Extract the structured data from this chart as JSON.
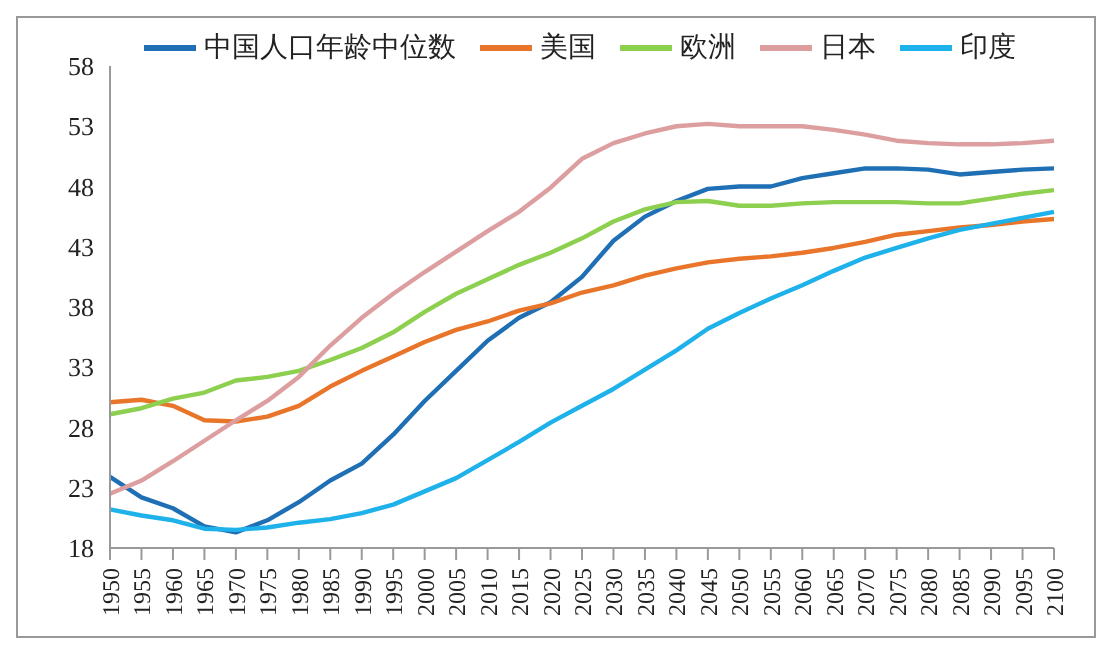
{
  "chart_data": {
    "type": "line",
    "categories": [
      "1950",
      "1955",
      "1960",
      "1965",
      "1970",
      "1975",
      "1980",
      "1985",
      "1990",
      "1995",
      "2000",
      "2005",
      "2010",
      "2015",
      "2020",
      "2025",
      "2030",
      "2035",
      "2040",
      "2045",
      "2050",
      "2055",
      "2060",
      "2065",
      "2070",
      "2075",
      "2080",
      "2085",
      "2090",
      "2095",
      "2100"
    ],
    "series": [
      {
        "name": "中国人口年龄中位数",
        "color": "#1f6fb5",
        "values": [
          23.9,
          22.2,
          21.3,
          19.8,
          19.3,
          20.3,
          21.8,
          23.6,
          25.0,
          27.4,
          30.2,
          32.7,
          35.2,
          37.1,
          38.4,
          40.5,
          43.5,
          45.5,
          46.8,
          47.8,
          48.0,
          48.0,
          48.7,
          49.1,
          49.5,
          49.5,
          49.4,
          49.0,
          49.2,
          49.4,
          49.5
        ]
      },
      {
        "name": "美国",
        "color": "#e8752a",
        "values": [
          30.1,
          30.3,
          29.8,
          28.6,
          28.5,
          28.9,
          29.8,
          31.4,
          32.7,
          33.9,
          35.1,
          36.1,
          36.8,
          37.7,
          38.3,
          39.2,
          39.8,
          40.6,
          41.2,
          41.7,
          42.0,
          42.2,
          42.5,
          42.9,
          43.4,
          44.0,
          44.3,
          44.6,
          44.8,
          45.1,
          45.3
        ]
      },
      {
        "name": "欧洲",
        "color": "#8dcf4f",
        "values": [
          29.1,
          29.6,
          30.4,
          30.9,
          31.9,
          32.2,
          32.7,
          33.6,
          34.6,
          35.9,
          37.6,
          39.1,
          40.3,
          41.5,
          42.5,
          43.7,
          45.1,
          46.1,
          46.7,
          46.8,
          46.4,
          46.4,
          46.6,
          46.7,
          46.7,
          46.7,
          46.6,
          46.6,
          47.0,
          47.4,
          47.7
        ]
      },
      {
        "name": "日本",
        "color": "#dd9ea0",
        "values": [
          22.5,
          23.6,
          25.2,
          26.9,
          28.6,
          30.2,
          32.2,
          34.8,
          37.1,
          39.1,
          40.9,
          42.6,
          44.3,
          45.9,
          47.9,
          50.3,
          51.6,
          52.4,
          53.0,
          53.2,
          53.0,
          53.0,
          53.0,
          52.7,
          52.3,
          51.8,
          51.6,
          51.5,
          51.5,
          51.6,
          51.8
        ]
      },
      {
        "name": "印度",
        "color": "#1fb1ea",
        "values": [
          21.2,
          20.7,
          20.3,
          19.6,
          19.5,
          19.7,
          20.1,
          20.4,
          20.9,
          21.6,
          22.7,
          23.8,
          25.3,
          26.8,
          28.4,
          29.8,
          31.2,
          32.8,
          34.4,
          36.2,
          37.5,
          38.7,
          39.8,
          41.0,
          42.1,
          42.9,
          43.7,
          44.4,
          44.9,
          45.4,
          45.9
        ]
      }
    ],
    "ylim": [
      18,
      58
    ],
    "yticks": [
      18,
      23,
      28,
      33,
      38,
      43,
      48,
      53,
      58
    ],
    "grid": false,
    "legend": "top",
    "marker": "none",
    "line_style": "solid"
  }
}
